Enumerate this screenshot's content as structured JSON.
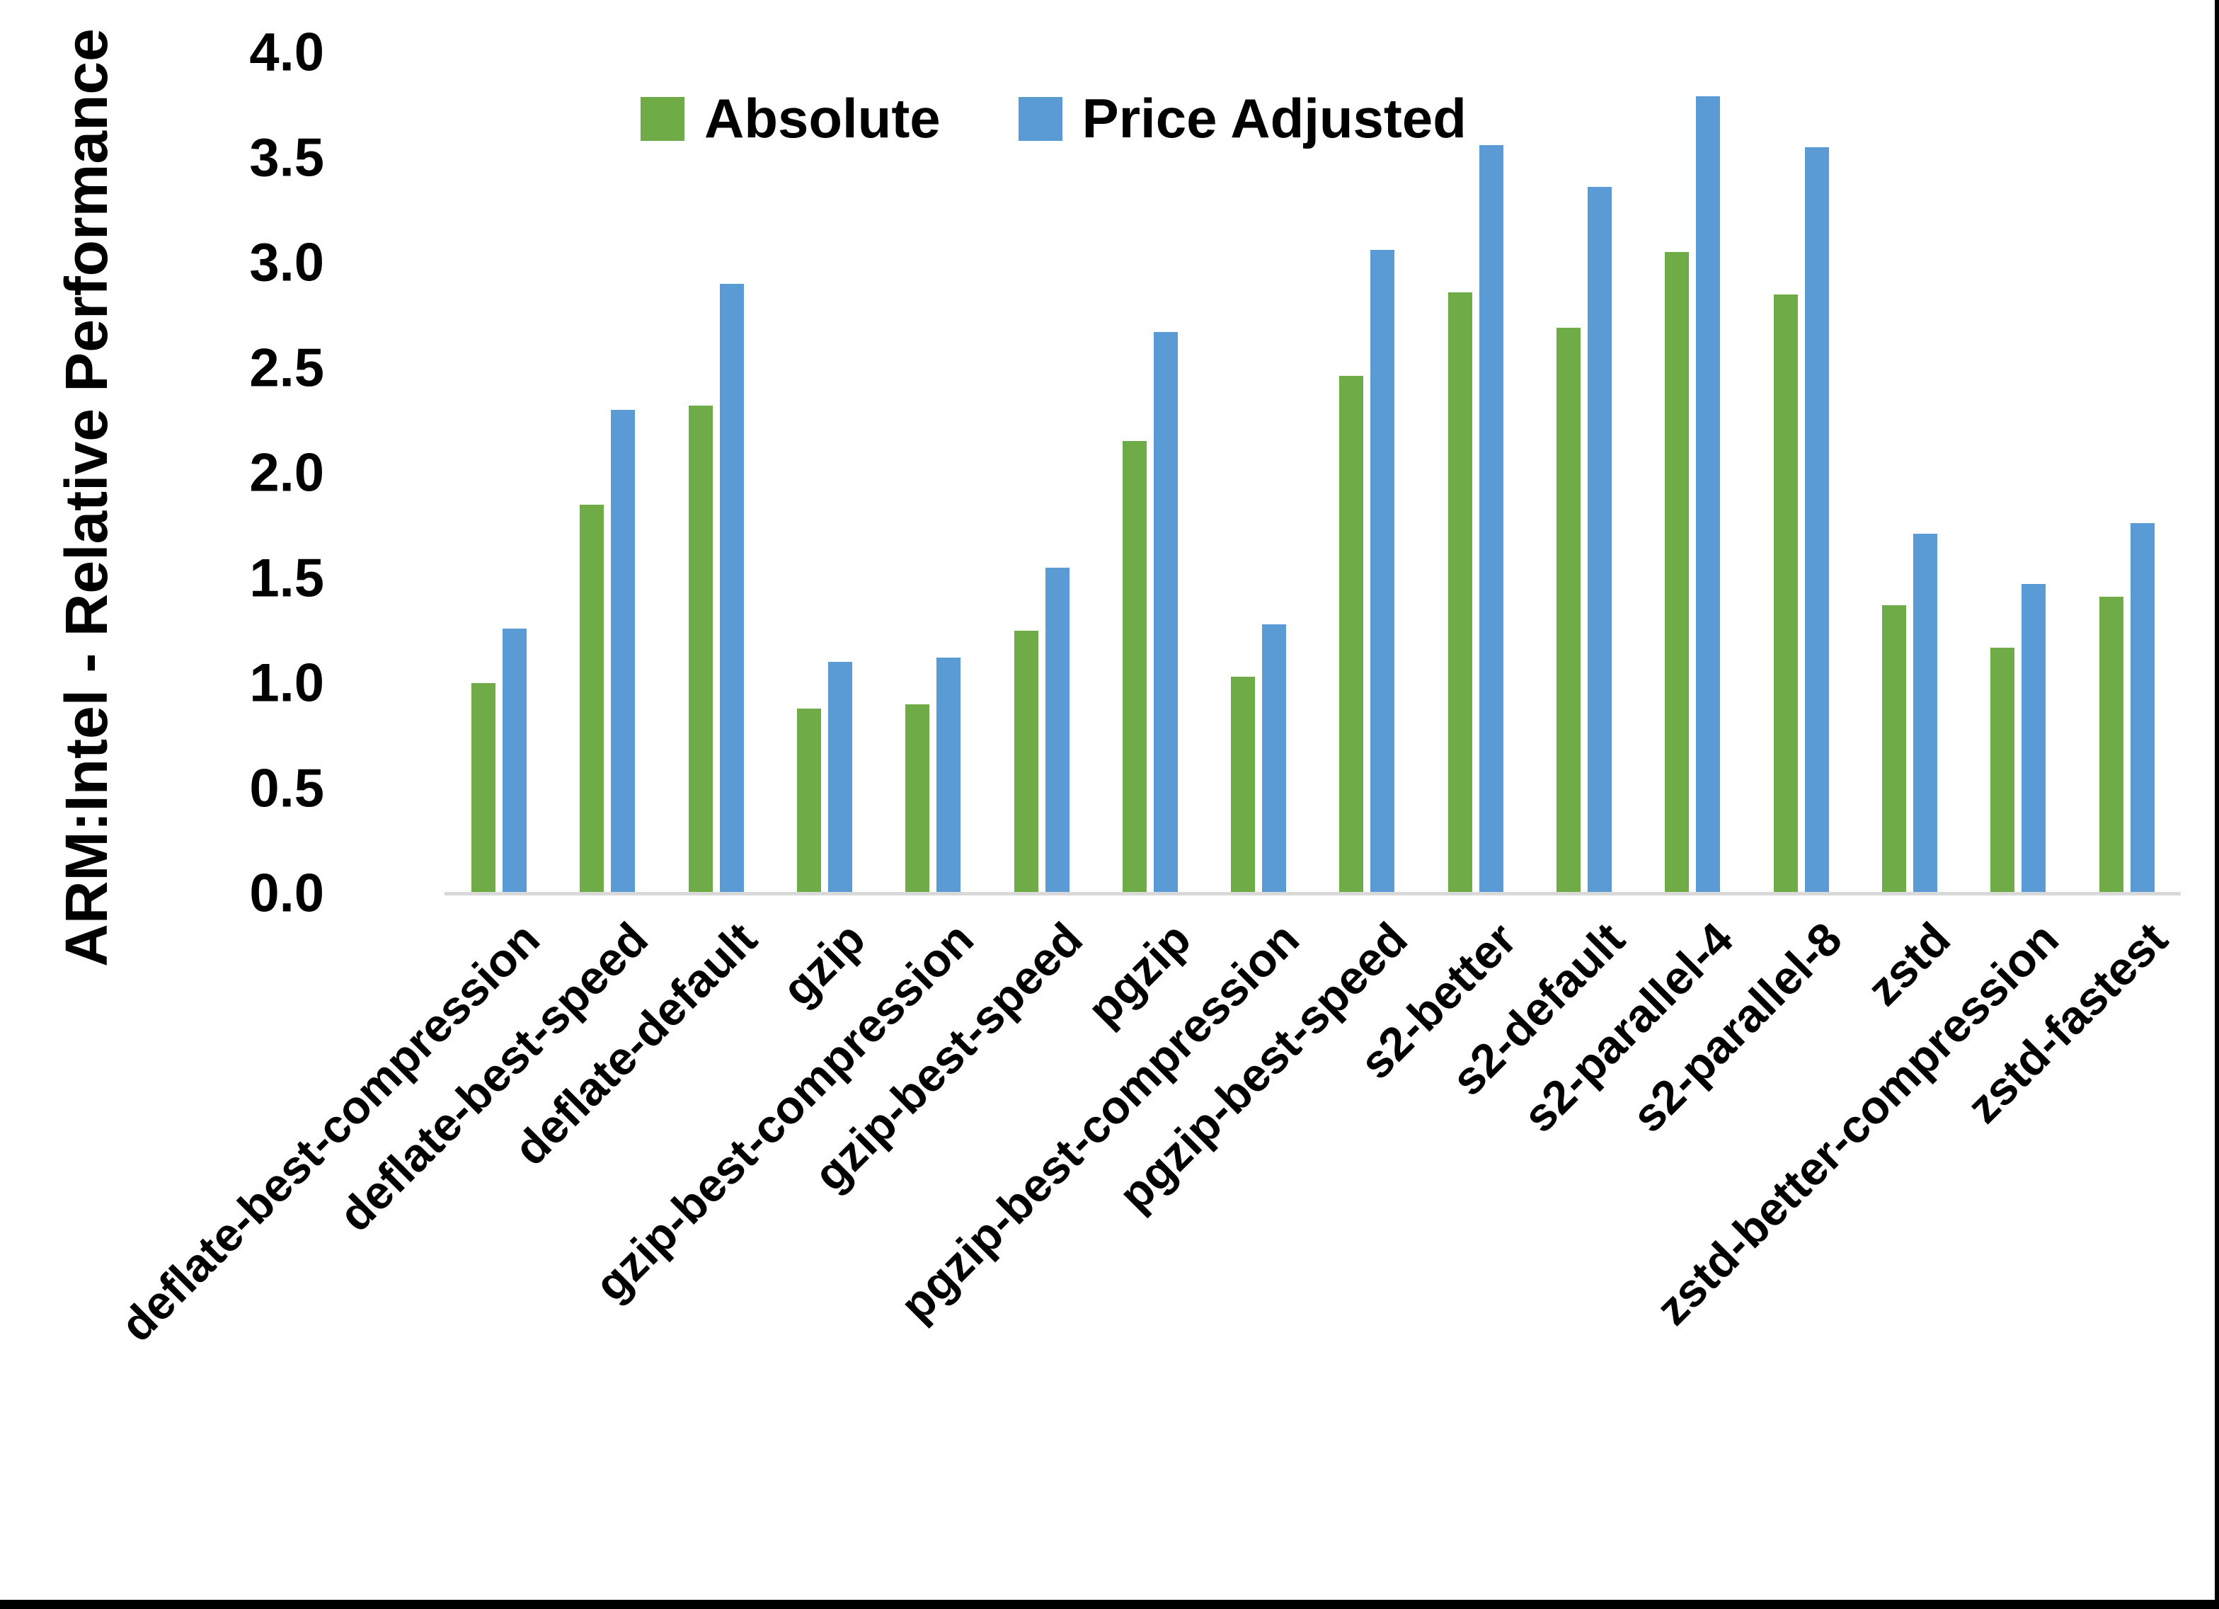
{
  "chart_data": {
    "type": "bar",
    "title": "",
    "xlabel": "",
    "ylabel": "ARM:Intel - Relative Performance",
    "ylim": [
      0.0,
      4.0
    ],
    "ytick_step": 0.5,
    "yticks": [
      "0.0",
      "0.5",
      "1.0",
      "1.5",
      "2.0",
      "2.5",
      "3.0",
      "3.5",
      "4.0"
    ],
    "grid": false,
    "legend_position": "top-center-inside",
    "categories": [
      "deflate-best-compression",
      "deflate-best-speed",
      "deflate-default",
      "gzip",
      "gzip-best-compression",
      "gzip-best-speed",
      "pgzip",
      "pgzip-best-compression",
      "pgzip-best-speed",
      "s2-better",
      "s2-default",
      "s2-parallel-4",
      "s2-parallel-8",
      "zstd",
      "zstd-better-compression",
      "zstd-fastest"
    ],
    "series": [
      {
        "name": "Absolute",
        "color": "#6FAC47",
        "values": [
          1.0,
          1.85,
          2.32,
          0.88,
          0.9,
          1.25,
          2.15,
          1.03,
          2.46,
          2.86,
          2.69,
          3.05,
          2.85,
          1.37,
          1.17,
          1.41
        ]
      },
      {
        "name": "Price Adjusted",
        "color": "#5B9BD5",
        "values": [
          1.26,
          2.3,
          2.9,
          1.1,
          1.12,
          1.55,
          2.67,
          1.28,
          3.06,
          3.56,
          3.36,
          3.79,
          3.55,
          1.71,
          1.47,
          1.76
        ]
      }
    ]
  },
  "colors": {
    "background": "#FFFFFF",
    "axis_line": "#D9D9D9",
    "text": "#000000",
    "border": "#000000"
  }
}
